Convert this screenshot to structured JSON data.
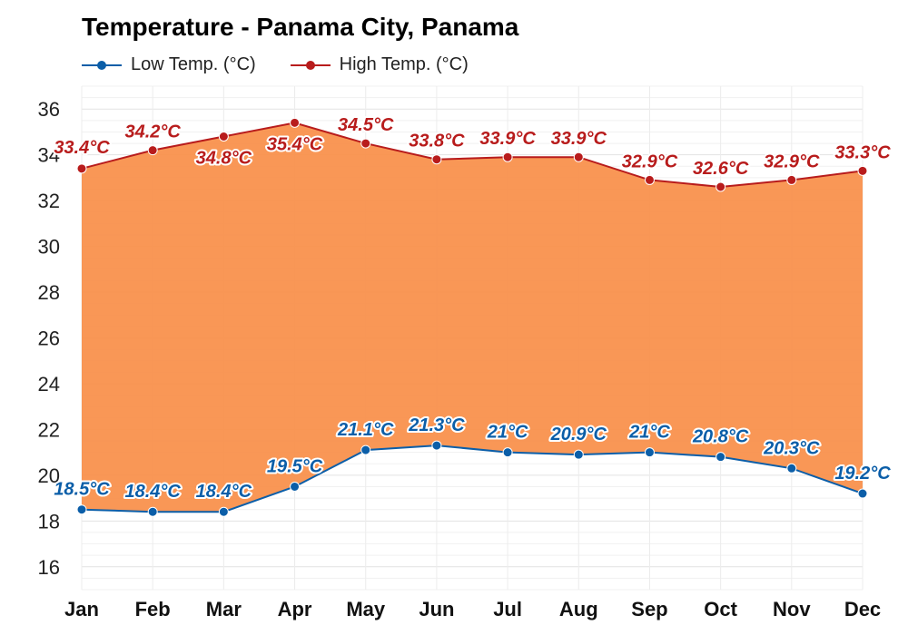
{
  "chart_data": {
    "type": "line",
    "title": "Temperature - Panama City, Panama",
    "categories": [
      "Jan",
      "Feb",
      "Mar",
      "Apr",
      "May",
      "Jun",
      "Jul",
      "Aug",
      "Sep",
      "Oct",
      "Nov",
      "Dec"
    ],
    "series": [
      {
        "name": "Low Temp. (°C)",
        "values": [
          18.5,
          18.4,
          18.4,
          19.5,
          21.1,
          21.3,
          21,
          20.9,
          21,
          20.8,
          20.3,
          19.2
        ],
        "labels": [
          "18.5°C",
          "18.4°C",
          "18.4°C",
          "19.5°C",
          "21.1°C",
          "21.3°C",
          "21°C",
          "20.9°C",
          "21°C",
          "20.8°C",
          "20.3°C",
          "19.2°C"
        ],
        "color": "#0b5ea8"
      },
      {
        "name": "High Temp. (°C)",
        "values": [
          33.4,
          34.2,
          34.8,
          35.4,
          34.5,
          33.8,
          33.9,
          33.9,
          32.9,
          32.6,
          32.9,
          33.3
        ],
        "labels": [
          "33.4°C",
          "34.2°C",
          "34.8°C",
          "35.4°C",
          "34.5°C",
          "33.8°C",
          "33.9°C",
          "33.9°C",
          "32.9°C",
          "32.6°C",
          "32.9°C",
          "33.3°C"
        ],
        "color": "#b81c1c"
      }
    ],
    "fill_color": "#f98e48",
    "ylim": [
      15,
      37
    ],
    "yticks": [
      16,
      18,
      20,
      22,
      24,
      26,
      28,
      30,
      32,
      34,
      36
    ],
    "xlabel": "",
    "ylabel": "",
    "grid": true,
    "legend_position": "top-left"
  }
}
